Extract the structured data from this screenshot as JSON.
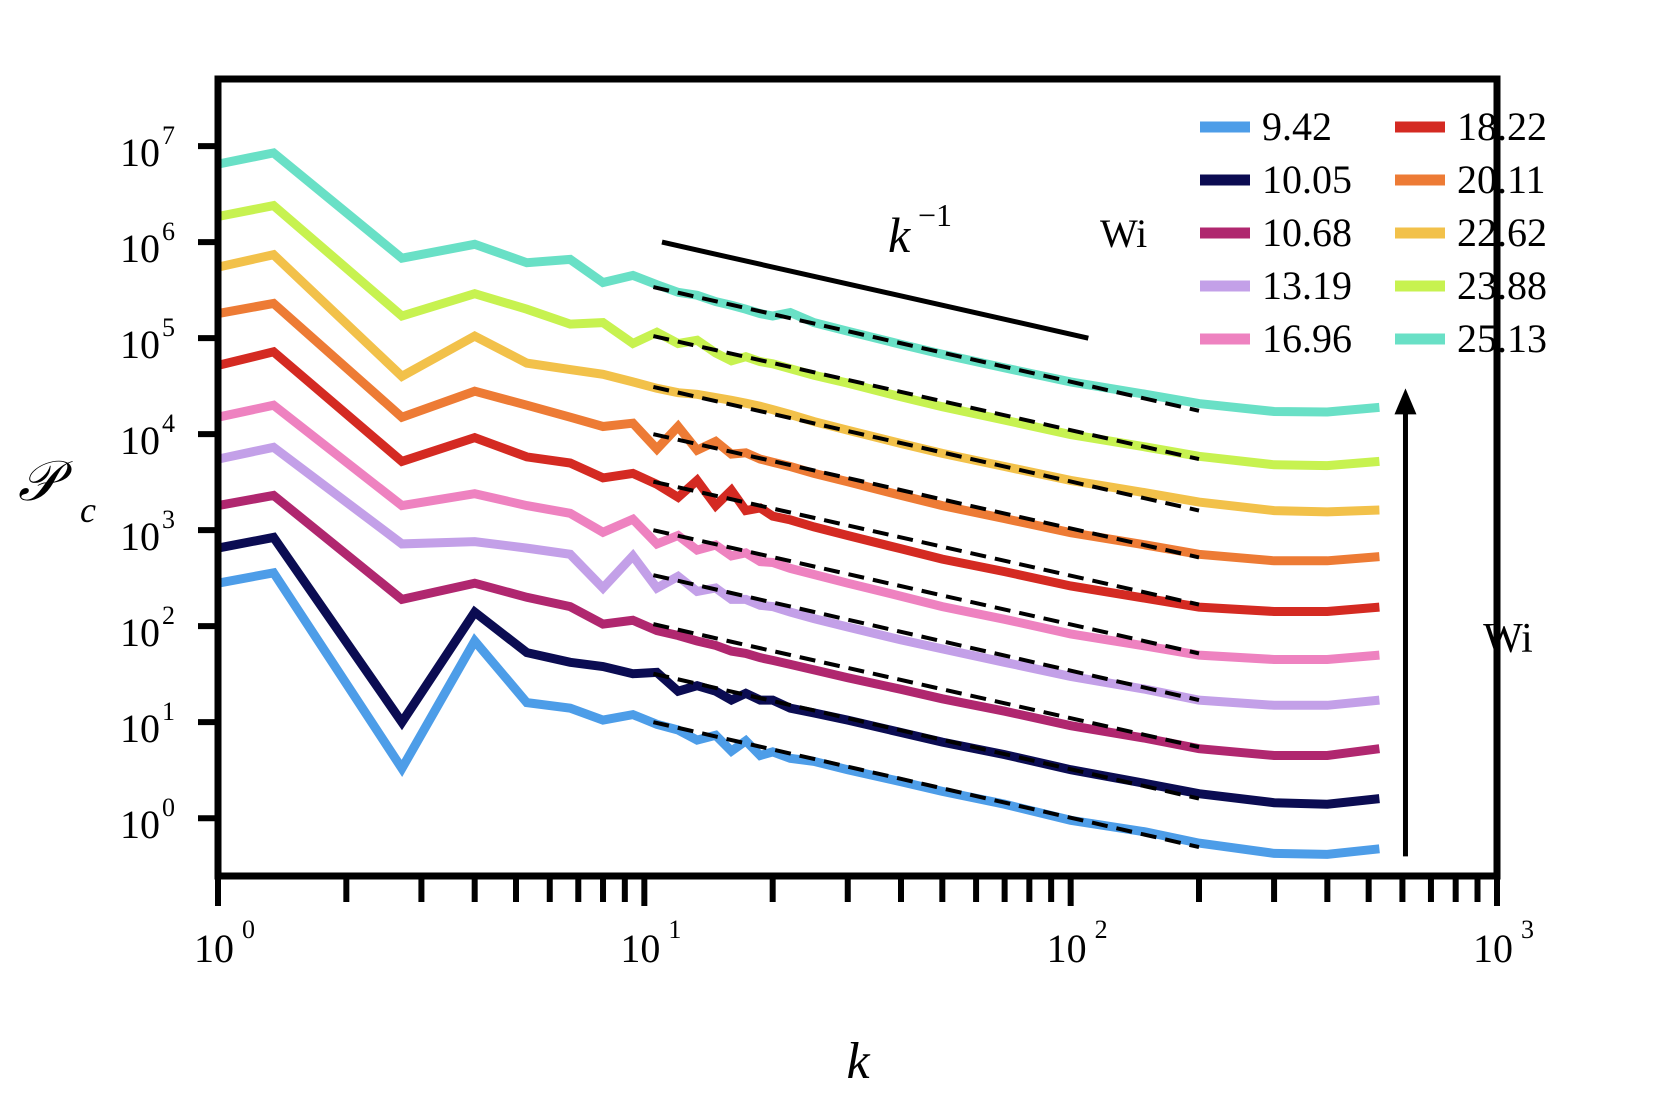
{
  "chart_data": {
    "type": "line",
    "title": "",
    "xlabel": "k",
    "ylabel": "𝒫",
    "ylabel_sub": "c",
    "xscale": "log",
    "yscale": "log",
    "xlim": [
      1,
      1000
    ],
    "ylim": [
      0.25,
      50000000
    ],
    "x_ticks": [
      {
        "value": 1,
        "base": "10",
        "exp": "0"
      },
      {
        "value": 10,
        "base": "10",
        "exp": "1"
      },
      {
        "value": 100,
        "base": "10",
        "exp": "2"
      },
      {
        "value": 1000,
        "base": "10",
        "exp": "3"
      }
    ],
    "y_ticks": [
      {
        "value": 1,
        "base": "10",
        "exp": "0"
      },
      {
        "value": 10,
        "base": "10",
        "exp": "1"
      },
      {
        "value": 100,
        "base": "10",
        "exp": "2"
      },
      {
        "value": 1000,
        "base": "10",
        "exp": "3"
      },
      {
        "value": 10000,
        "base": "10",
        "exp": "4"
      },
      {
        "value": 100000,
        "base": "10",
        "exp": "5"
      },
      {
        "value": 1000000,
        "base": "10",
        "exp": "6"
      },
      {
        "value": 10000000,
        "base": "10",
        "exp": "7"
      }
    ],
    "legend_title": "Wi",
    "legend_position": "top-right",
    "series": [
      {
        "name": "9.42",
        "color": "#4d9de8",
        "k": [
          1,
          1.35,
          2.7,
          4,
          5.3,
          6.7,
          8,
          9.4,
          10.7,
          12,
          13.3,
          14.7,
          16,
          17.3,
          18.7,
          20,
          22,
          25,
          30,
          40,
          50,
          70,
          100,
          150,
          200,
          300,
          400,
          530
        ],
        "values": [
          280,
          360,
          3.3,
          70,
          16,
          14,
          10.5,
          12,
          9.5,
          8.3,
          6.5,
          7.3,
          5.0,
          6.4,
          4.5,
          4.9,
          4.2,
          3.9,
          3.2,
          2.4,
          1.9,
          1.4,
          0.95,
          0.72,
          0.55,
          0.43,
          0.42,
          0.48
        ]
      },
      {
        "name": "10.05",
        "color": "#0b0c52",
        "k": [
          1,
          1.35,
          2.7,
          4,
          5.3,
          6.7,
          8,
          9.4,
          10.7,
          12,
          13.3,
          14.7,
          16,
          17.3,
          18.7,
          20,
          22,
          25,
          30,
          40,
          50,
          70,
          100,
          150,
          200,
          300,
          400,
          530
        ],
        "values": [
          650,
          840,
          10,
          140,
          53,
          42,
          38,
          32,
          33,
          21,
          24,
          21,
          17,
          20,
          17,
          17,
          14,
          12.5,
          10.5,
          7.8,
          6.2,
          4.6,
          3.2,
          2.3,
          1.8,
          1.45,
          1.4,
          1.6
        ]
      },
      {
        "name": "10.68",
        "color": "#b0276f",
        "k": [
          1,
          1.35,
          2.7,
          4,
          5.3,
          6.7,
          8,
          9.4,
          10.7,
          12,
          13.3,
          14.7,
          16,
          17.3,
          18.7,
          20,
          22,
          25,
          30,
          40,
          50,
          70,
          100,
          150,
          200,
          300,
          400,
          530
        ],
        "values": [
          1800,
          2300,
          190,
          280,
          200,
          160,
          105,
          115,
          90,
          80,
          70,
          63,
          55,
          52,
          47,
          44,
          40,
          35,
          29,
          22,
          17.5,
          13,
          9.2,
          6.8,
          5.3,
          4.5,
          4.5,
          5.3
        ]
      },
      {
        "name": "13.19",
        "color": "#c3a0e8",
        "k": [
          1,
          1.35,
          2.7,
          4,
          5.3,
          6.7,
          8,
          9.4,
          10.7,
          12,
          13.3,
          14.7,
          16,
          17.3,
          18.7,
          20,
          22,
          25,
          30,
          40,
          50,
          70,
          100,
          150,
          200,
          300,
          400,
          530
        ],
        "values": [
          5500,
          7300,
          720,
          760,
          650,
          560,
          250,
          540,
          250,
          330,
          230,
          250,
          190,
          190,
          165,
          160,
          140,
          120,
          98,
          72,
          58,
          42,
          30,
          22,
          17,
          15,
          15,
          17
        ]
      },
      {
        "name": "16.96",
        "color": "#ee82c0",
        "k": [
          1,
          1.35,
          2.7,
          4,
          5.3,
          6.7,
          8,
          9.4,
          10.7,
          12,
          13.3,
          14.7,
          16,
          17.3,
          18.7,
          20,
          22,
          25,
          30,
          40,
          50,
          70,
          100,
          150,
          200,
          300,
          400,
          530
        ],
        "values": [
          15000,
          20000,
          1800,
          2400,
          1800,
          1500,
          950,
          1300,
          720,
          880,
          620,
          700,
          540,
          580,
          470,
          460,
          400,
          345,
          280,
          205,
          160,
          118,
          83,
          62,
          50,
          45,
          45,
          50
        ]
      },
      {
        "name": "18.22",
        "color": "#d42a22",
        "k": [
          1,
          1.35,
          2.7,
          4,
          5.3,
          6.7,
          8,
          9.4,
          10.7,
          12,
          13.3,
          14.7,
          16,
          17.3,
          18.7,
          20,
          22,
          25,
          30,
          40,
          50,
          70,
          100,
          150,
          200,
          300,
          400,
          530
        ],
        "values": [
          52000,
          72000,
          5200,
          9200,
          5800,
          5000,
          3500,
          3900,
          3000,
          2200,
          3300,
          1800,
          2600,
          1600,
          1700,
          1400,
          1280,
          1080,
          880,
          640,
          500,
          370,
          262,
          195,
          158,
          142,
          142,
          158
        ]
      },
      {
        "name": "20.11",
        "color": "#ed7b35",
        "k": [
          1,
          1.35,
          2.7,
          4,
          5.3,
          6.7,
          8,
          9.4,
          10.7,
          12,
          13.3,
          14.7,
          16,
          17.3,
          18.7,
          20,
          22,
          25,
          30,
          40,
          50,
          70,
          100,
          150,
          200,
          300,
          400,
          530
        ],
        "values": [
          180000,
          230000,
          15000,
          28000,
          20000,
          15000,
          12000,
          13000,
          7000,
          12000,
          6800,
          8400,
          6200,
          6400,
          5500,
          5100,
          4600,
          3900,
          3200,
          2300,
          1800,
          1320,
          940,
          700,
          560,
          480,
          480,
          530
        ]
      },
      {
        "name": "22.62",
        "color": "#f2c14a",
        "k": [
          1,
          1.35,
          2.7,
          4,
          5.3,
          6.7,
          8,
          9.4,
          10.7,
          12,
          13.3,
          14.7,
          16,
          17.3,
          18.7,
          20,
          22,
          25,
          30,
          40,
          50,
          70,
          100,
          150,
          200,
          300,
          400,
          530
        ],
        "values": [
          550000,
          740000,
          40000,
          105000,
          55000,
          47000,
          42000,
          35000,
          30000,
          27000,
          26000,
          24000,
          22500,
          21000,
          19500,
          18000,
          16000,
          13500,
          11000,
          8000,
          6300,
          4600,
          3300,
          2450,
          1960,
          1600,
          1550,
          1620
        ]
      },
      {
        "name": "23.88",
        "color": "#c7f250",
        "k": [
          1,
          1.35,
          2.7,
          4,
          5.3,
          6.7,
          8,
          9.4,
          10.7,
          12,
          13.3,
          14.7,
          16,
          17.3,
          18.7,
          20,
          22,
          25,
          30,
          40,
          50,
          70,
          100,
          150,
          200,
          300,
          400,
          530
        ],
        "values": [
          1850000,
          2400000,
          170000,
          290000,
          200000,
          140000,
          145000,
          88000,
          115000,
          88000,
          95000,
          70000,
          58000,
          64000,
          57000,
          54000,
          48000,
          41000,
          34000,
          24500,
          19300,
          14000,
          9900,
          7350,
          5880,
          4800,
          4700,
          5200
        ]
      },
      {
        "name": "25.13",
        "color": "#69e0c6",
        "k": [
          1,
          1.35,
          2.7,
          4,
          5.3,
          6.7,
          8,
          9.4,
          10.7,
          12,
          13.3,
          14.7,
          16,
          17.3,
          18.7,
          20,
          22,
          25,
          30,
          40,
          50,
          70,
          100,
          150,
          200,
          300,
          400,
          530
        ],
        "values": [
          6500000,
          8500000,
          680000,
          950000,
          610000,
          660000,
          380000,
          450000,
          360000,
          300000,
          280000,
          240000,
          220000,
          200000,
          180000,
          170000,
          185000,
          145000,
          118000,
          86000,
          68000,
          49000,
          35000,
          26000,
          20800,
          17200,
          17000,
          19000
        ]
      }
    ],
    "fits": [
      {
        "k": [
          10.5,
          200
        ],
        "values": [
          10,
          0.5
        ]
      },
      {
        "k": [
          10.5,
          200
        ],
        "values": [
          32,
          1.6
        ]
      },
      {
        "k": [
          10.5,
          200
        ],
        "values": [
          105,
          5.5
        ]
      },
      {
        "k": [
          10.5,
          200
        ],
        "values": [
          340,
          17
        ]
      },
      {
        "k": [
          10.5,
          200
        ],
        "values": [
          1000,
          52
        ]
      },
      {
        "k": [
          10.5,
          200
        ],
        "values": [
          3200,
          168
        ]
      },
      {
        "k": [
          10.5,
          200
        ],
        "values": [
          10000,
          520
        ]
      },
      {
        "k": [
          10.5,
          200
        ],
        "values": [
          31000,
          1600
        ]
      },
      {
        "k": [
          10.5,
          200
        ],
        "values": [
          105000,
          5500
        ]
      },
      {
        "k": [
          10.5,
          200
        ],
        "values": [
          340000,
          17500
        ]
      }
    ],
    "annotations": {
      "slope_label": "k",
      "slope_exp": "−1",
      "reference_line": {
        "k": [
          11,
          110
        ],
        "values": [
          1000000,
          100000
        ]
      },
      "arrow_label": "Wi",
      "arrow": {
        "k": 610,
        "from": 0.4,
        "to": 30000
      }
    }
  }
}
